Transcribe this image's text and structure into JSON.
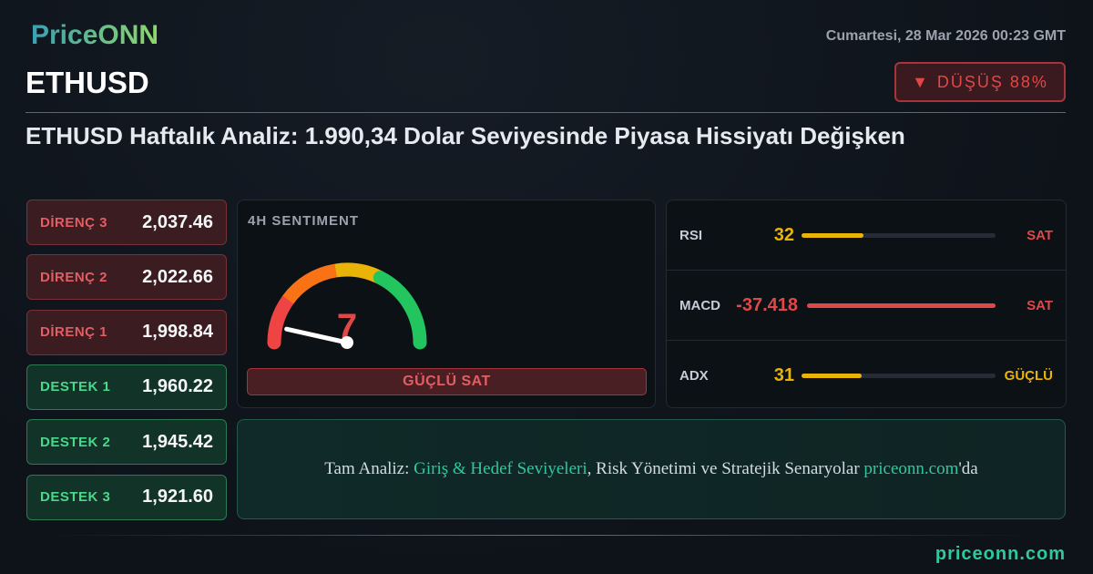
{
  "brand": "PriceONN",
  "datetime": "Cumartesi, 28 Mar 2026 00:23 GMT",
  "symbol": "ETHUSD",
  "trend_badge": {
    "icon": "triangle-down-icon",
    "label": "DÜŞÜŞ 88%",
    "color": "#e04848"
  },
  "headline": "ETHUSD Haftalık Analiz: 1.990,34 Dolar Seviyesinde Piyasa Hissiyatı Değişken",
  "levels": [
    {
      "label": "DİRENÇ 3",
      "value": "2,037.46",
      "type": "resistance"
    },
    {
      "label": "DİRENÇ 2",
      "value": "2,022.66",
      "type": "resistance"
    },
    {
      "label": "DİRENÇ 1",
      "value": "1,998.84",
      "type": "resistance"
    },
    {
      "label": "DESTEK 1",
      "value": "1,960.22",
      "type": "support"
    },
    {
      "label": "DESTEK 2",
      "value": "1,945.42",
      "type": "support"
    },
    {
      "label": "DESTEK 3",
      "value": "1,921.60",
      "type": "support"
    }
  ],
  "sentiment": {
    "title": "4H SENTIMENT",
    "value": "7",
    "gauge_max": 100,
    "signal": "GÜÇLÜ SAT"
  },
  "indicators": [
    {
      "name": "RSI",
      "value": "32",
      "fill_percent": 32,
      "signal": "SAT",
      "value_color": "#eab308",
      "bar_color": "#eab308",
      "signal_color": "#e04848"
    },
    {
      "name": "MACD",
      "value": "-37.418",
      "fill_percent": 100,
      "signal": "SAT",
      "value_color": "#e04848",
      "bar_color": "#e04848",
      "signal_color": "#e04848"
    },
    {
      "name": "ADX",
      "value": "31",
      "fill_percent": 31,
      "signal": "GÜÇLÜ",
      "value_color": "#eab308",
      "bar_color": "#eab308",
      "signal_color": "#eab308"
    }
  ],
  "cta": {
    "prefix": "Tam Analiz: ",
    "highlight": "Giriş & Hedef Seviyeleri",
    "middle": ", Risk Yönetimi ve Stratejik Senaryolar ",
    "link": "priceonn.com",
    "suffix": "'da"
  },
  "footer": "priceonn.com"
}
